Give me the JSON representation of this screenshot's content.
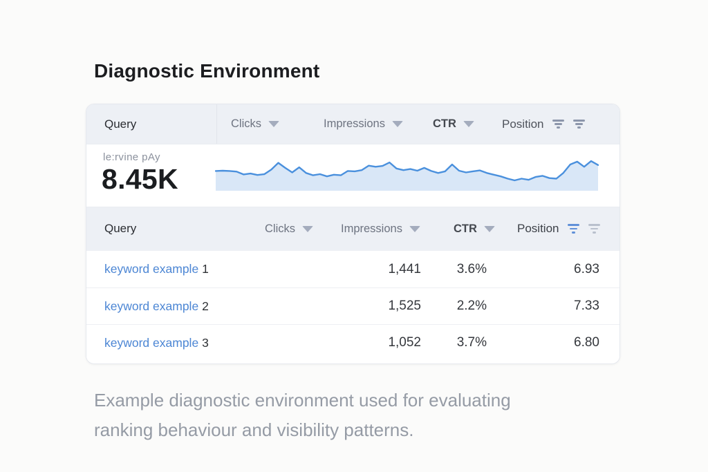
{
  "page": {
    "title": "Diagnostic Environment",
    "caption_line1": "Example diagnostic environment used for evaluating",
    "caption_line2": "ranking behaviour and visibility patterns."
  },
  "summary_header": {
    "query": "Query",
    "clicks": "Clicks",
    "impressions": "Impressions",
    "ctr": "CTR",
    "position": "Position"
  },
  "metric": {
    "label": "le:rvine pAy",
    "value": "8.45K"
  },
  "table": {
    "header": {
      "query": "Query",
      "clicks": "Clicks",
      "impressions": "Impressions",
      "ctr": "CTR",
      "position": "Position"
    },
    "rows": [
      {
        "query": "keyword example",
        "index": "1",
        "clicks": "",
        "impressions": "1,441",
        "ctr": "3.6%",
        "position": "6.93"
      },
      {
        "query": "keyword example",
        "index": "2",
        "clicks": "",
        "impressions": "1,525",
        "ctr": "2.2%",
        "position": "7.33"
      },
      {
        "query": "keyword example",
        "index": "3",
        "clicks": "",
        "impressions": "1,052",
        "ctr": "3.7%",
        "position": "6.80"
      }
    ]
  },
  "icons": {
    "sort_arrow": "triangle-down",
    "filter": "funnel-bars"
  },
  "colors": {
    "link_blue": "#4c86d4",
    "header_band": "#edf0f5",
    "active_filter_blue": "#6090d8",
    "inactive_filter_gray": "#b9c0cd",
    "sparkline_line": "#4a90dd",
    "sparkline_fill": "#d9e7f7"
  },
  "chart_data": {
    "type": "area",
    "title": "",
    "xlabel": "",
    "ylabel": "",
    "axes_visible": false,
    "legend": "none",
    "ylim": [
      0,
      100
    ],
    "x_count": 56,
    "line_color": "#4a90dd",
    "fill_color": "#d9e7f7",
    "series": [
      {
        "name": "clicks-trend",
        "values": [
          55,
          56,
          55,
          53,
          43,
          46,
          41,
          44,
          60,
          84,
          66,
          50,
          68,
          48,
          40,
          44,
          36,
          42,
          40,
          55,
          54,
          58,
          74,
          70,
          73,
          85,
          64,
          58,
          62,
          56,
          66,
          55,
          48,
          54,
          78,
          56,
          50,
          54,
          57,
          48,
          42,
          36,
          28,
          22,
          28,
          24,
          34,
          38,
          30,
          28,
          48,
          78,
          88,
          70,
          90,
          76
        ]
      }
    ]
  }
}
